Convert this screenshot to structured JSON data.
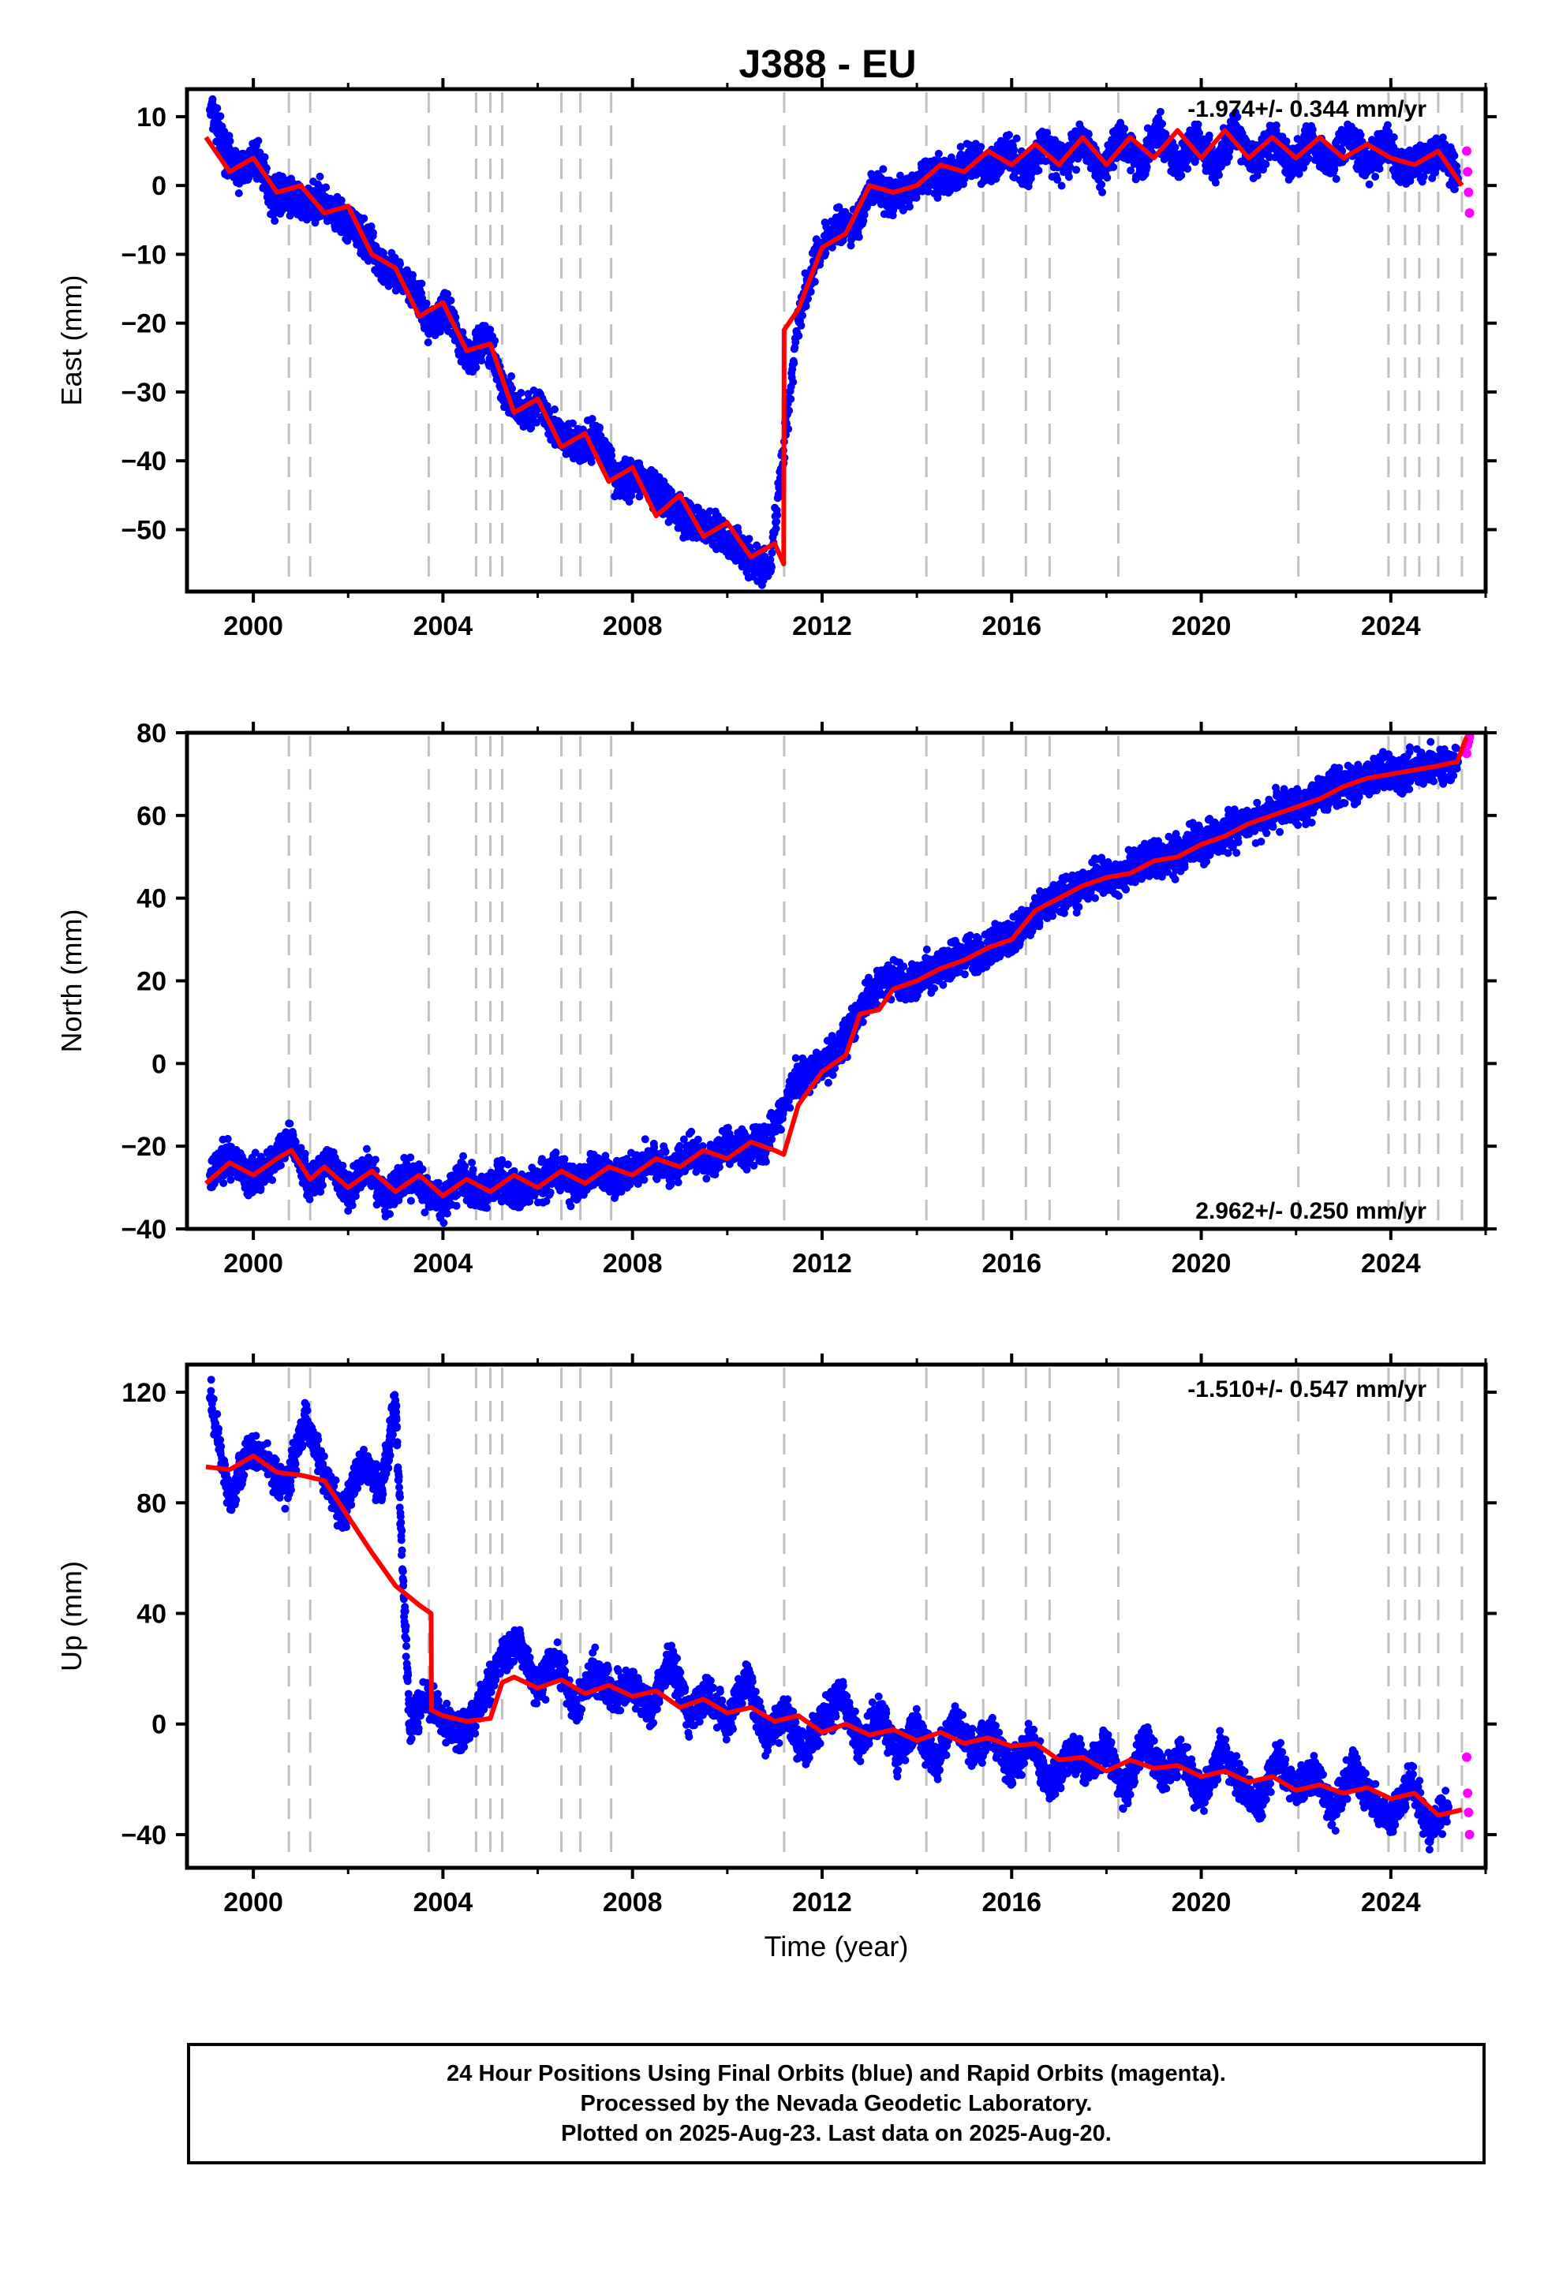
{
  "chart_data": {
    "type": "scatter",
    "title": "J388 - EU",
    "xlabel": "Time (year)",
    "xlim": [
      1998.6,
      2026.0
    ],
    "x_ticks": [
      2000,
      2004,
      2008,
      2012,
      2016,
      2020,
      2024
    ],
    "x_tick_labels": [
      "2000",
      "2004",
      "2008",
      "2012",
      "2016",
      "2020",
      "2024"
    ],
    "colors": {
      "final": "#0000ff",
      "rapid": "#ff00ff",
      "model": "#ff0000",
      "event_lines": "#c0c0c0"
    },
    "event_lines": [
      2000.75,
      2001.2,
      2003.7,
      2004.7,
      2005.0,
      2005.25,
      2006.5,
      2006.9,
      2007.55,
      2011.2,
      2014.2,
      2015.4,
      2016.3,
      2016.8,
      2018.25,
      2022.05,
      2023.95,
      2024.3,
      2024.6,
      2025.0,
      2025.5
    ],
    "panels": [
      {
        "id": "east",
        "ylabel": "East (mm)",
        "ylim": [
          -59,
          14
        ],
        "y_ticks": [
          10,
          0,
          -10,
          -20,
          -30,
          -40,
          -50
        ],
        "y_tick_labels": [
          "10",
          "0",
          "−10",
          "−20",
          "−30",
          "−40",
          "−50"
        ],
        "rate_label": "-1.974+/- 0.344 mm/yr",
        "model": {
          "x": [
            1999.0,
            1999.5,
            2000.0,
            2000.5,
            2001.0,
            2001.5,
            2002.0,
            2002.5,
            2003.0,
            2003.5,
            2004.0,
            2004.5,
            2005.0,
            2005.5,
            2006.0,
            2006.5,
            2007.0,
            2007.5,
            2008.0,
            2008.5,
            2009.0,
            2009.5,
            2010.0,
            2010.5,
            2011.0,
            2011.19,
            2011.2,
            2011.5,
            2012.0,
            2012.5,
            2013.0,
            2013.5,
            2014.0,
            2014.5,
            2015.0,
            2015.5,
            2016.0,
            2016.5,
            2017.0,
            2017.5,
            2018.0,
            2018.5,
            2019.0,
            2019.5,
            2020.0,
            2020.5,
            2021.0,
            2021.5,
            2022.0,
            2022.5,
            2023.0,
            2023.5,
            2024.0,
            2024.5,
            2025.0,
            2025.5
          ],
          "y": [
            7.0,
            2.0,
            4.0,
            -1.0,
            0.0,
            -4.0,
            -3.0,
            -10.0,
            -12.0,
            -19.0,
            -17.0,
            -24.0,
            -23.0,
            -33.0,
            -31.0,
            -38.0,
            -36.0,
            -43.0,
            -41.0,
            -48.0,
            -45.0,
            -51.0,
            -49.0,
            -54.0,
            -52.0,
            -55.0,
            -21.0,
            -18.0,
            -9.0,
            -7.0,
            0.0,
            -1.0,
            0.0,
            3.0,
            2.0,
            5.0,
            3.0,
            6.0,
            3.0,
            7.0,
            3.0,
            7.0,
            4.0,
            8.0,
            4.0,
            8.0,
            4.0,
            7.0,
            4.0,
            7.0,
            4.0,
            6.0,
            4.0,
            3.0,
            5.0,
            0.0
          ]
        },
        "scatter": {
          "x": [
            1999.1,
            1999.4,
            1999.7,
            2000.1,
            2000.4,
            2000.7,
            2001.1,
            2001.4,
            2001.8,
            2002.1,
            2002.5,
            2002.9,
            2003.3,
            2003.7,
            2004.1,
            2004.5,
            2004.9,
            2005.3,
            2005.7,
            2006.1,
            2006.5,
            2006.9,
            2007.3,
            2007.7,
            2008.1,
            2008.5,
            2008.9,
            2009.3,
            2009.7,
            2010.1,
            2010.5,
            2010.9,
            2011.5,
            2011.9,
            2012.3,
            2012.7,
            2013.1,
            2013.5,
            2013.9,
            2014.3,
            2014.7,
            2015.1,
            2015.5,
            2015.9,
            2016.3,
            2016.7,
            2017.1,
            2017.5,
            2017.9,
            2018.3,
            2018.7,
            2019.1,
            2019.5,
            2019.9,
            2020.3,
            2020.7,
            2021.1,
            2021.5,
            2021.9,
            2022.3,
            2022.7,
            2023.1,
            2023.5,
            2023.9,
            2024.3,
            2024.7,
            2025.1,
            2025.4
          ],
          "y": [
            11.0,
            5.0,
            2.0,
            4.0,
            -2.0,
            -1.0,
            -3.0,
            -2.0,
            -5.0,
            -6.0,
            -9.0,
            -13.0,
            -14.0,
            -20.0,
            -18.0,
            -25.0,
            -22.0,
            -30.0,
            -33.0,
            -32.0,
            -37.0,
            -38.0,
            -37.0,
            -43.0,
            -42.0,
            -45.0,
            -47.0,
            -49.0,
            -50.0,
            -52.0,
            -54.0,
            -56.0,
            -19.0,
            -10.0,
            -6.0,
            -6.0,
            0.0,
            -2.0,
            0.0,
            2.0,
            1.0,
            4.0,
            2.0,
            5.0,
            2.0,
            6.0,
            3.0,
            7.0,
            2.0,
            7.0,
            3.0,
            8.0,
            3.0,
            7.0,
            3.0,
            8.0,
            3.0,
            7.0,
            3.0,
            7.0,
            3.0,
            7.0,
            3.0,
            6.0,
            2.0,
            4.0,
            5.0,
            1.0
          ]
        },
        "rapid": {
          "x": [
            2025.6,
            2025.62,
            2025.64,
            2025.66
          ],
          "y": [
            5.0,
            2.0,
            -1.0,
            -4.0
          ]
        }
      },
      {
        "id": "north",
        "ylabel": "North (mm)",
        "ylim": [
          -40,
          80
        ],
        "y_ticks": [
          80,
          60,
          40,
          20,
          0,
          -20,
          -40
        ],
        "y_tick_labels": [
          "80",
          "60",
          "40",
          "20",
          "0",
          "−20",
          "−40"
        ],
        "rate_label": "2.962+/- 0.250 mm/yr",
        "model": {
          "x": [
            1999.0,
            1999.5,
            2000.0,
            2000.5,
            2000.8,
            2001.2,
            2001.5,
            2002.0,
            2002.5,
            2003.0,
            2003.5,
            2004.0,
            2004.5,
            2005.0,
            2005.5,
            2006.0,
            2006.5,
            2007.0,
            2007.5,
            2008.0,
            2008.5,
            2009.0,
            2009.5,
            2010.0,
            2010.5,
            2011.0,
            2011.19,
            2011.5,
            2012.0,
            2012.5,
            2012.8,
            2013.2,
            2013.5,
            2014.0,
            2014.5,
            2015.0,
            2015.5,
            2016.0,
            2016.5,
            2017.0,
            2017.5,
            2018.0,
            2018.5,
            2019.0,
            2019.5,
            2020.0,
            2020.5,
            2021.0,
            2021.5,
            2022.0,
            2022.5,
            2023.0,
            2023.5,
            2024.0,
            2024.5,
            2025.0,
            2025.4,
            2025.6
          ],
          "y": [
            -29.0,
            -24.0,
            -27.0,
            -23.0,
            -21.0,
            -28.0,
            -25.0,
            -30.0,
            -26.0,
            -31.0,
            -27.0,
            -32.0,
            -28.0,
            -31.0,
            -27.0,
            -30.0,
            -26.0,
            -29.0,
            -25.0,
            -27.0,
            -23.0,
            -25.0,
            -21.0,
            -23.0,
            -19.0,
            -21.0,
            -22.0,
            -10.0,
            -2.0,
            2.0,
            12.0,
            13.0,
            18.0,
            20.0,
            23.0,
            25.0,
            28.0,
            30.0,
            37.0,
            40.0,
            43.0,
            45.0,
            46.0,
            49.0,
            50.0,
            53.0,
            55.0,
            58.0,
            60.0,
            62.0,
            64.0,
            67.0,
            69.0,
            70.0,
            71.0,
            72.0,
            73.0,
            79.0
          ]
        },
        "scatter": {
          "x": [
            1999.1,
            1999.5,
            1999.9,
            2000.3,
            2000.8,
            2001.2,
            2001.6,
            2002.0,
            2002.4,
            2002.8,
            2003.2,
            2003.6,
            2004.0,
            2004.4,
            2004.8,
            2005.2,
            2005.6,
            2006.0,
            2006.4,
            2006.8,
            2007.2,
            2007.6,
            2008.0,
            2008.4,
            2008.8,
            2009.2,
            2009.6,
            2010.0,
            2010.4,
            2010.8,
            2011.4,
            2011.8,
            2012.2,
            2012.6,
            2013.0,
            2013.4,
            2013.8,
            2014.2,
            2014.6,
            2015.0,
            2015.4,
            2015.8,
            2016.2,
            2016.6,
            2017.0,
            2017.4,
            2017.8,
            2018.2,
            2018.6,
            2019.0,
            2019.4,
            2019.8,
            2020.2,
            2020.6,
            2021.0,
            2021.4,
            2021.8,
            2022.2,
            2022.6,
            2023.0,
            2023.4,
            2023.8,
            2024.2,
            2024.6,
            2025.0,
            2025.4
          ],
          "y": [
            -27.0,
            -22.0,
            -28.0,
            -25.0,
            -18.0,
            -30.0,
            -24.0,
            -31.0,
            -25.0,
            -32.0,
            -27.0,
            -30.0,
            -34.0,
            -27.0,
            -32.0,
            -28.0,
            -31.0,
            -29.0,
            -26.0,
            -30.0,
            -25.0,
            -28.0,
            -26.0,
            -23.0,
            -26.0,
            -22.0,
            -24.0,
            -20.0,
            -21.0,
            -19.0,
            -5.0,
            -1.0,
            1.0,
            8.0,
            17.0,
            21.0,
            19.0,
            22.0,
            24.0,
            26.0,
            27.0,
            30.0,
            32.0,
            38.0,
            40.0,
            42.0,
            45.0,
            44.0,
            48.0,
            50.0,
            50.0,
            53.0,
            54.0,
            56.0,
            58.0,
            60.0,
            62.0,
            62.0,
            66.0,
            67.0,
            69.0,
            70.0,
            70.0,
            72.0,
            72.0,
            73.0
          ]
        },
        "rapid": {
          "x": [
            2025.6,
            2025.62,
            2025.64,
            2025.66
          ],
          "y": [
            75.0,
            77.0,
            78.0,
            79.0
          ]
        }
      },
      {
        "id": "up",
        "ylabel": "Up (mm)",
        "ylim": [
          -52,
          130
        ],
        "y_ticks": [
          120,
          80,
          40,
          0,
          -40
        ],
        "y_tick_labels": [
          "120",
          "80",
          "40",
          "0",
          "−40"
        ],
        "rate_label": "-1.510+/- 0.547 mm/yr",
        "model": {
          "x": [
            1999.0,
            1999.5,
            2000.0,
            2000.5,
            2001.0,
            2001.5,
            2002.0,
            2002.5,
            2003.0,
            2003.5,
            2003.75,
            2003.76,
            2004.0,
            2004.5,
            2005.0,
            2005.25,
            2005.5,
            2006.0,
            2006.5,
            2007.0,
            2007.5,
            2008.0,
            2008.5,
            2009.0,
            2009.5,
            2010.0,
            2010.5,
            2011.0,
            2011.5,
            2012.0,
            2012.5,
            2013.0,
            2013.5,
            2014.0,
            2014.5,
            2015.0,
            2015.5,
            2016.0,
            2016.5,
            2017.0,
            2017.5,
            2018.0,
            2018.5,
            2019.0,
            2019.5,
            2020.0,
            2020.5,
            2021.0,
            2021.5,
            2022.0,
            2022.5,
            2023.0,
            2023.5,
            2024.0,
            2024.5,
            2025.0,
            2025.5
          ],
          "y": [
            93.0,
            92.0,
            97.0,
            91.0,
            90.0,
            88.0,
            75.0,
            62.0,
            50.0,
            43.0,
            40.0,
            5.0,
            3.0,
            1.0,
            2.0,
            15.0,
            17.0,
            13.0,
            16.0,
            11.0,
            14.0,
            10.0,
            12.0,
            6.0,
            9.0,
            4.0,
            6.0,
            1.0,
            3.0,
            -3.0,
            0.0,
            -4.0,
            -2.0,
            -6.0,
            -3.0,
            -7.0,
            -5.0,
            -8.0,
            -7.0,
            -13.0,
            -12.0,
            -17.0,
            -13.0,
            -16.0,
            -15.0,
            -19.0,
            -17.0,
            -21.0,
            -19.0,
            -24.0,
            -22.0,
            -25.0,
            -23.0,
            -27.0,
            -25.0,
            -33.0,
            -31.0
          ]
        },
        "scatter": {
          "x": [
            1999.1,
            1999.5,
            1999.9,
            2000.3,
            2000.7,
            2001.1,
            2001.5,
            2001.9,
            2002.3,
            2002.7,
            2003.0,
            2003.3,
            2003.6,
            2004.0,
            2004.4,
            2004.8,
            2005.2,
            2005.6,
            2006.0,
            2006.4,
            2006.8,
            2007.2,
            2007.6,
            2008.0,
            2008.4,
            2008.8,
            2009.2,
            2009.6,
            2010.0,
            2010.4,
            2010.8,
            2011.2,
            2011.6,
            2012.0,
            2012.4,
            2012.8,
            2013.2,
            2013.6,
            2014.0,
            2014.4,
            2014.8,
            2015.2,
            2015.6,
            2016.0,
            2016.4,
            2016.8,
            2017.2,
            2017.6,
            2018.0,
            2018.4,
            2018.8,
            2019.2,
            2019.6,
            2020.0,
            2020.4,
            2020.8,
            2021.2,
            2021.6,
            2022.0,
            2022.4,
            2022.8,
            2023.2,
            2023.6,
            2024.0,
            2024.4,
            2024.8,
            2025.2
          ],
          "y": [
            118.0,
            80.0,
            100.0,
            95.0,
            85.0,
            110.0,
            90.0,
            75.0,
            95.0,
            85.0,
            115.0,
            0.0,
            10.0,
            2.0,
            -5.0,
            8.0,
            22.0,
            30.0,
            12.0,
            25.0,
            5.0,
            20.0,
            10.0,
            15.0,
            5.0,
            25.0,
            2.0,
            12.0,
            0.0,
            18.0,
            -5.0,
            5.0,
            -10.0,
            2.0,
            10.0,
            -8.0,
            5.0,
            -12.0,
            0.0,
            -15.0,
            2.0,
            -10.0,
            -2.0,
            -18.0,
            -5.0,
            -22.0,
            -10.0,
            -15.0,
            -8.0,
            -25.0,
            -5.0,
            -20.0,
            -12.0,
            -28.0,
            -10.0,
            -20.0,
            -30.0,
            -12.0,
            -25.0,
            -18.0,
            -32.0,
            -15.0,
            -28.0,
            -35.0,
            -20.0,
            -38.0,
            -30.0
          ]
        },
        "rapid": {
          "x": [
            2025.6,
            2025.62,
            2025.64,
            2025.66
          ],
          "y": [
            -12.0,
            -25.0,
            -32.0,
            -40.0
          ]
        }
      }
    ]
  },
  "footer": {
    "line1": "24 Hour Positions Using Final Orbits (blue) and Rapid Orbits (magenta).",
    "line2": "Processed by the Nevada Geodetic Laboratory.",
    "line3": "Plotted on 2025-Aug-23. Last data on 2025-Aug-20."
  }
}
